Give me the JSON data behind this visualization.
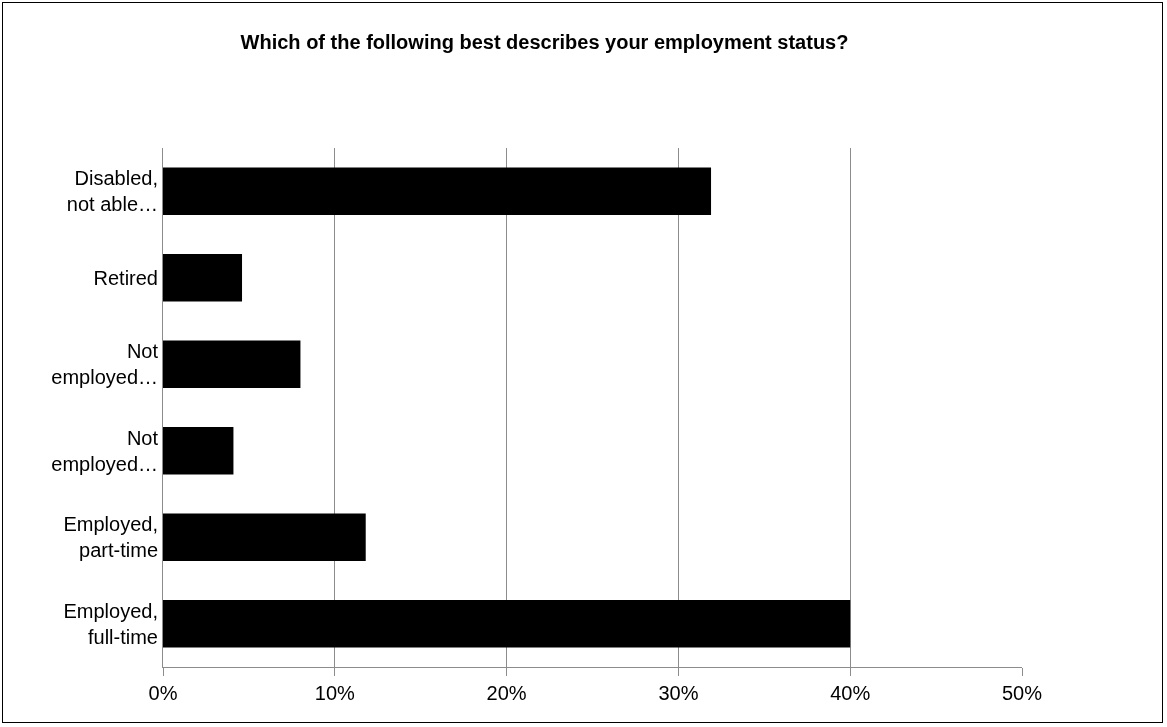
{
  "chart_data": {
    "type": "bar",
    "orientation": "horizontal",
    "title": "Which of the following best describes your employment status?",
    "categories": [
      "Disabled, not able…",
      "Retired",
      "Not employed…",
      "Not employed…",
      "Employed, part-time",
      "Employed, full-time"
    ],
    "values": [
      31.9,
      4.6,
      8.0,
      4.1,
      11.8,
      40.0
    ],
    "color": "#000000",
    "xlim": [
      0,
      50
    ],
    "xticks": [
      {
        "value": 0,
        "label": "0%"
      },
      {
        "value": 10,
        "label": "10%"
      },
      {
        "value": 20,
        "label": "20%"
      },
      {
        "value": 30,
        "label": "30%"
      },
      {
        "value": 40,
        "label": "40%"
      },
      {
        "value": 50,
        "label": "50%"
      }
    ],
    "grid": "x"
  }
}
